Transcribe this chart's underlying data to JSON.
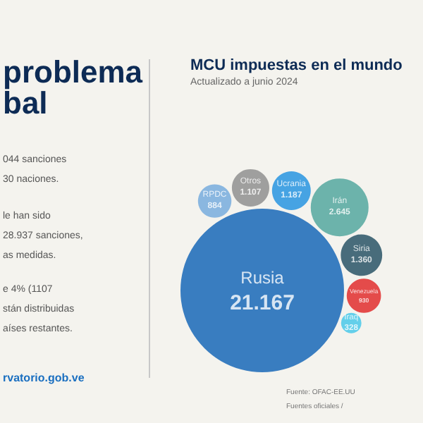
{
  "chart_data": {
    "type": "other",
    "title": "MCU impuestas en el mundo",
    "subtitle": "Actualizado a junio 2024",
    "categories": [
      "RPDC",
      "Otros",
      "Ucrania",
      "Irán",
      "Siria",
      "Venezuela",
      "Iraq",
      "Rusia"
    ],
    "values": [
      884,
      1107,
      1187,
      2645,
      1360,
      930,
      328,
      21167
    ],
    "value_labels": [
      "884",
      "1.107",
      "1.187",
      "2.645",
      "1.360",
      "930",
      "328",
      "21.167"
    ],
    "colors": [
      "#6fa8dc",
      "#8a8a8a",
      "#1a8fe0",
      "#4aa39a",
      "#1d4a5e",
      "#e02020",
      "#3fc6e8",
      "#0a5fb4"
    ],
    "annotations": [
      "problema",
      "bal",
      "044 sanciones",
      "30 naciones.",
      "le han sido",
      "28.937 sanciones,",
      "as medidas.",
      "e 4% (1107",
      "stán distribuidas",
      "aíses restantes.",
      "rvatorio.gob.ve",
      "Fuente: OFAC-EE.UU",
      "Fuentes oficiales /"
    ]
  }
}
